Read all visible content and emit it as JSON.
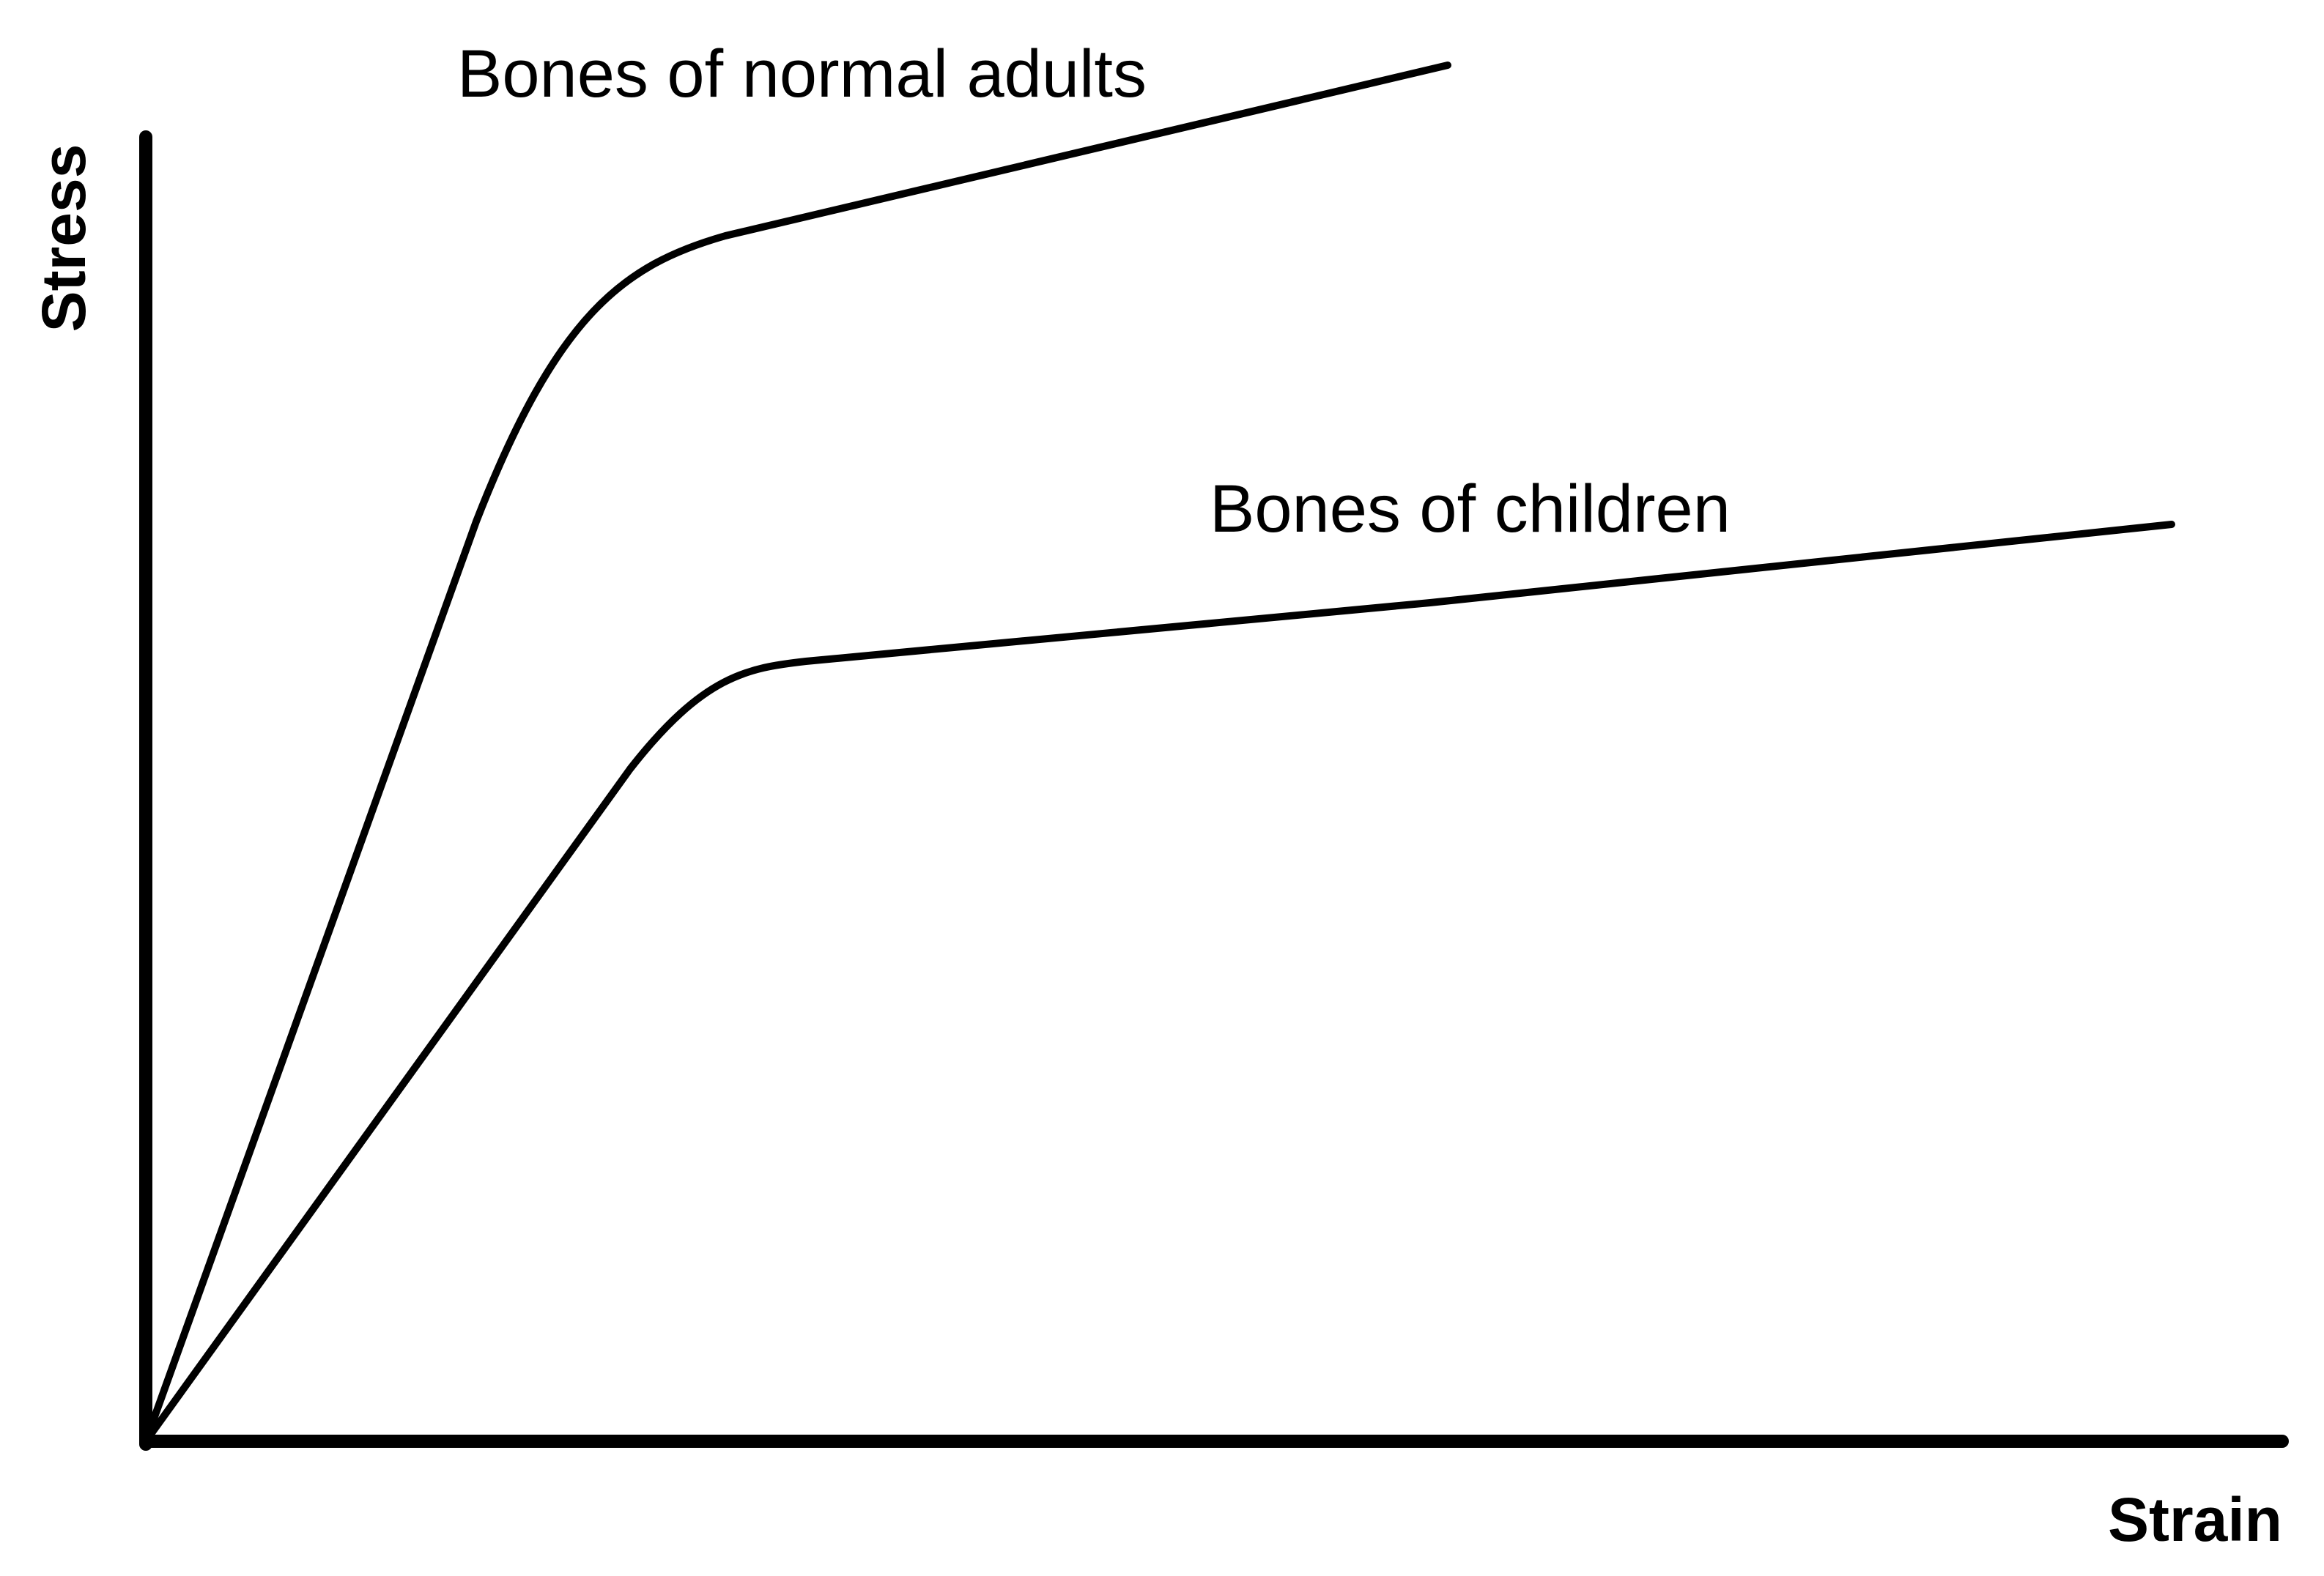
{
  "axes": {
    "y_label": "Stress",
    "x_label": "Strain"
  },
  "curves": [
    {
      "label": "Bones of normal adults"
    },
    {
      "label": "Bones of children"
    }
  ]
}
